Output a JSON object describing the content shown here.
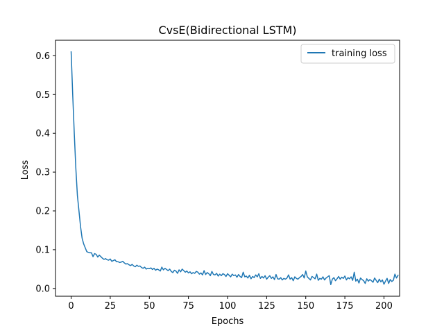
{
  "chart_data": {
    "type": "line",
    "title": "CvsE(Bidirectional LSTM)",
    "xlabel": "Epochs",
    "ylabel": "Loss",
    "xlim": [
      -10,
      210
    ],
    "ylim": [
      -0.02,
      0.64
    ],
    "xticks": [
      0,
      25,
      50,
      75,
      100,
      125,
      150,
      175,
      200
    ],
    "yticks": [
      0.0,
      0.1,
      0.2,
      0.3,
      0.4,
      0.5,
      0.6
    ],
    "ytick_labels": [
      "0.0",
      "0.1",
      "0.2",
      "0.3",
      "0.4",
      "0.5",
      "0.6"
    ],
    "grid": false,
    "legend_position": "top-right",
    "series": [
      {
        "name": "training loss",
        "color": "#1f77b4",
        "x_start": 0,
        "x_step": 1,
        "values": [
          0.61,
          0.5,
          0.4,
          0.31,
          0.24,
          0.2,
          0.16,
          0.13,
          0.115,
          0.105,
          0.095,
          0.093,
          0.092,
          0.092,
          0.082,
          0.09,
          0.088,
          0.081,
          0.086,
          0.082,
          0.078,
          0.075,
          0.077,
          0.074,
          0.073,
          0.076,
          0.07,
          0.072,
          0.074,
          0.069,
          0.069,
          0.067,
          0.068,
          0.07,
          0.066,
          0.063,
          0.064,
          0.061,
          0.059,
          0.062,
          0.058,
          0.056,
          0.06,
          0.057,
          0.058,
          0.054,
          0.052,
          0.055,
          0.05,
          0.052,
          0.051,
          0.053,
          0.049,
          0.052,
          0.047,
          0.05,
          0.048,
          0.045,
          0.055,
          0.048,
          0.052,
          0.049,
          0.046,
          0.05,
          0.044,
          0.041,
          0.047,
          0.045,
          0.039,
          0.048,
          0.043,
          0.05,
          0.046,
          0.042,
          0.045,
          0.04,
          0.043,
          0.038,
          0.041,
          0.039,
          0.044,
          0.042,
          0.037,
          0.04,
          0.035,
          0.046,
          0.036,
          0.041,
          0.038,
          0.033,
          0.044,
          0.036,
          0.035,
          0.039,
          0.032,
          0.037,
          0.033,
          0.038,
          0.036,
          0.031,
          0.038,
          0.034,
          0.03,
          0.037,
          0.033,
          0.035,
          0.029,
          0.036,
          0.031,
          0.028,
          0.042,
          0.03,
          0.032,
          0.027,
          0.034,
          0.025,
          0.031,
          0.028,
          0.035,
          0.03,
          0.038,
          0.026,
          0.031,
          0.027,
          0.033,
          0.024,
          0.029,
          0.033,
          0.026,
          0.03,
          0.023,
          0.036,
          0.025,
          0.024,
          0.028,
          0.022,
          0.026,
          0.024,
          0.027,
          0.035,
          0.024,
          0.028,
          0.02,
          0.03,
          0.026,
          0.024,
          0.028,
          0.031,
          0.036,
          0.027,
          0.045,
          0.03,
          0.026,
          0.022,
          0.031,
          0.028,
          0.025,
          0.037,
          0.021,
          0.026,
          0.024,
          0.03,
          0.022,
          0.027,
          0.03,
          0.033,
          0.01,
          0.024,
          0.028,
          0.02,
          0.025,
          0.031,
          0.024,
          0.029,
          0.026,
          0.032,
          0.022,
          0.028,
          0.025,
          0.03,
          0.021,
          0.042,
          0.019,
          0.024,
          0.014,
          0.027,
          0.023,
          0.02,
          0.013,
          0.025,
          0.019,
          0.023,
          0.02,
          0.016,
          0.027,
          0.021,
          0.015,
          0.024,
          0.017,
          0.022,
          0.011,
          0.019,
          0.026,
          0.013,
          0.023,
          0.018,
          0.021,
          0.037,
          0.027,
          0.034
        ]
      }
    ]
  }
}
